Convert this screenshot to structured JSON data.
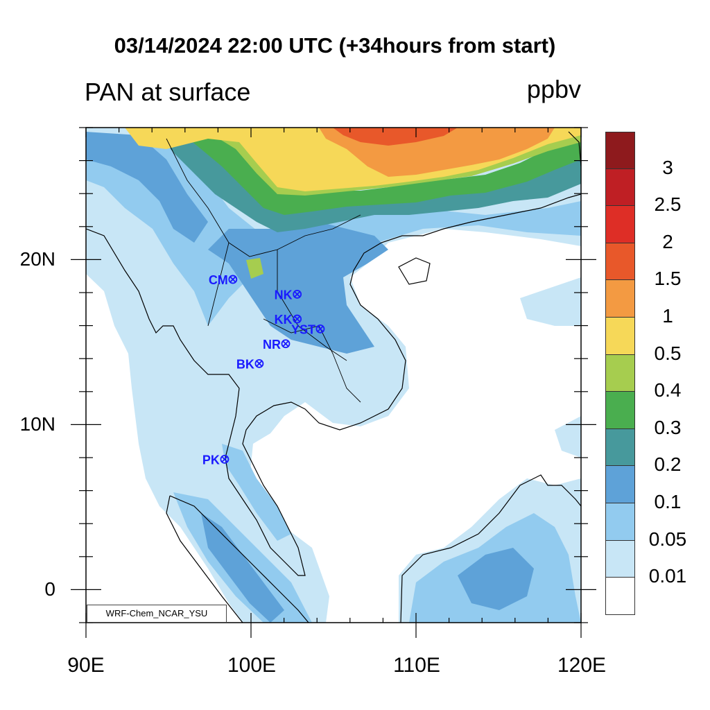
{
  "title": "03/14/2024 22:00 UTC (+34hours from start)",
  "variable_label": "PAN at surface",
  "units_label": "ppbv",
  "credit": "WRF-Chem_NCAR_YSU",
  "lon_ticks": [
    "90E",
    "100E",
    "110E",
    "120E"
  ],
  "lat_ticks": [
    "20N",
    "10N",
    "0"
  ],
  "colorbar": {
    "colors": [
      "#8e1a1d",
      "#bf1f24",
      "#de2e26",
      "#e8582a",
      "#f39a42",
      "#f6d858",
      "#a6cd4f",
      "#4aae4f",
      "#47999c",
      "#5ea2d8",
      "#92cbef",
      "#c8e6f6",
      "#ffffff"
    ],
    "labels": [
      "3",
      "2.5",
      "2",
      "1.5",
      "1",
      "0.5",
      "0.4",
      "0.3",
      "0.2",
      "0.1",
      "0.05",
      "0.01"
    ]
  },
  "stations": [
    {
      "id": "CM",
      "lon": 98.9,
      "lat": 18.8
    },
    {
      "id": "NK",
      "lon": 102.8,
      "lat": 17.9
    },
    {
      "id": "KK",
      "lon": 102.8,
      "lat": 16.4
    },
    {
      "id": "YST",
      "lon": 104.2,
      "lat": 15.8
    },
    {
      "id": "NR",
      "lon": 102.1,
      "lat": 14.9
    },
    {
      "id": "BK",
      "lon": 100.5,
      "lat": 13.7
    },
    {
      "id": "PK",
      "lon": 98.4,
      "lat": 7.9
    }
  ],
  "colors": {
    "station": "#1a1aff",
    "coast": "#000000"
  }
}
